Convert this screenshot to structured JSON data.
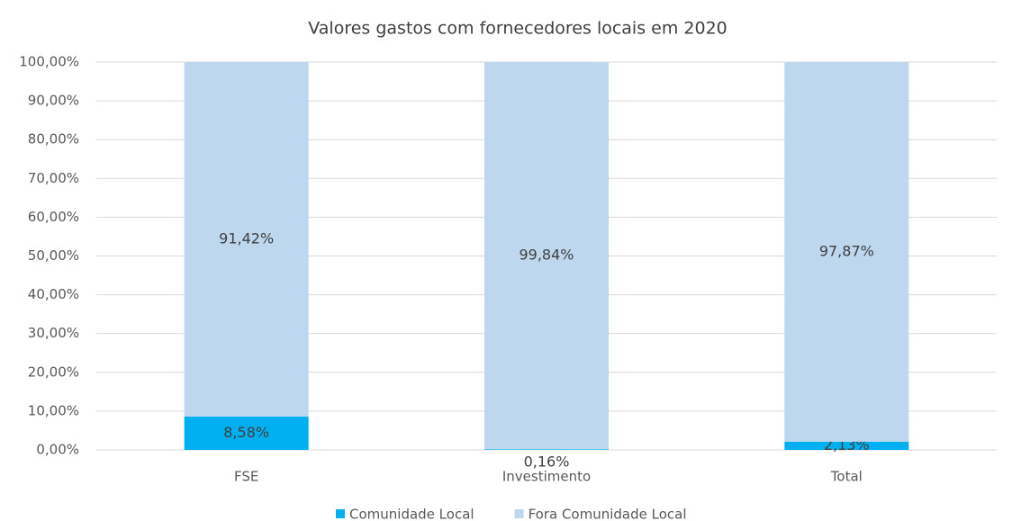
{
  "chart_data": {
    "type": "stacked_bar",
    "title": "Valores gastos com fornecedores locais em 2020",
    "categories": [
      "FSE",
      "Investimento",
      "Total"
    ],
    "series": [
      {
        "name": "Comunidade Local",
        "color": "#00b0f0",
        "values": [
          8.58,
          0.16,
          2.13
        ],
        "value_labels": [
          "8,58%",
          "0,16%",
          "2,13%"
        ]
      },
      {
        "name": "Fora Comunidade Local",
        "color": "#bdd7ee",
        "values": [
          91.42,
          99.84,
          97.87
        ],
        "value_labels": [
          "91,42%",
          "99,84%",
          "97,87%"
        ]
      }
    ],
    "ylim": [
      0,
      100
    ],
    "yticks": [
      {
        "value": 0,
        "label": "0,00%"
      },
      {
        "value": 10,
        "label": "10,00%"
      },
      {
        "value": 20,
        "label": "20,00%"
      },
      {
        "value": 30,
        "label": "30,00%"
      },
      {
        "value": 40,
        "label": "40,00%"
      },
      {
        "value": 50,
        "label": "50,00%"
      },
      {
        "value": 60,
        "label": "60,00%"
      },
      {
        "value": 70,
        "label": "70,00%"
      },
      {
        "value": 80,
        "label": "80,00%"
      },
      {
        "value": 90,
        "label": "90,00%"
      },
      {
        "value": 100,
        "label": "100,00%"
      }
    ],
    "grid": true,
    "legend": "bottom"
  }
}
